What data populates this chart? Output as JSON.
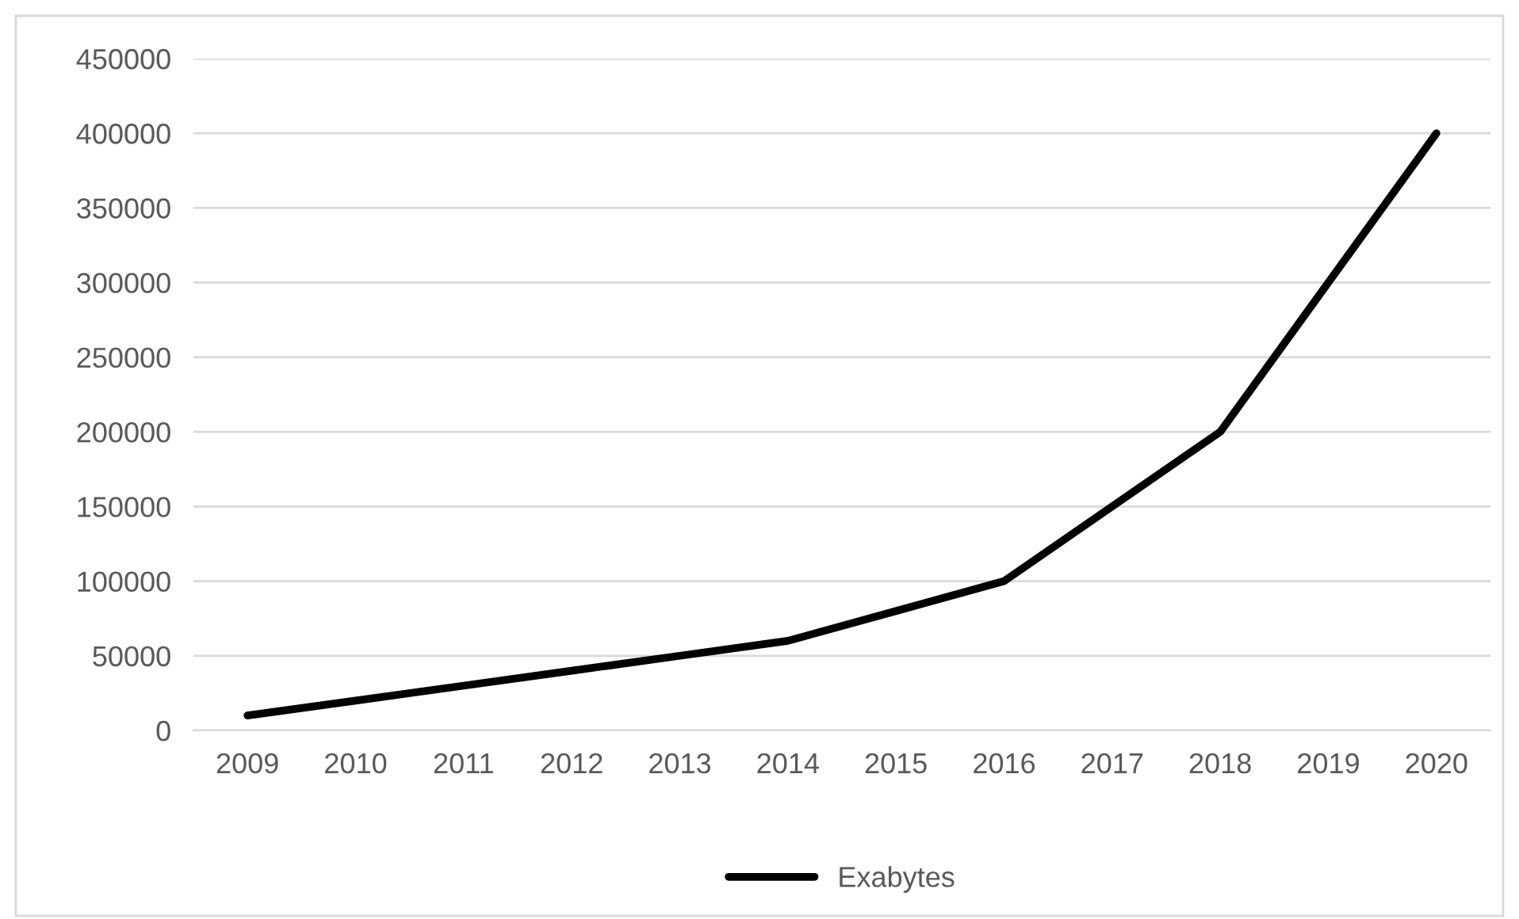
{
  "chart_data": {
    "type": "line",
    "categories": [
      "2009",
      "2010",
      "2011",
      "2012",
      "2013",
      "2014",
      "2015",
      "2016",
      "2017",
      "2018",
      "2019",
      "2020"
    ],
    "series": [
      {
        "name": "Exabytes",
        "color": "#000000",
        "values": [
          10000,
          20000,
          30000,
          40000,
          50000,
          60000,
          80000,
          100000,
          150000,
          200000,
          300000,
          400000
        ]
      }
    ],
    "ylim": [
      0,
      450000
    ],
    "yticks": [
      0,
      50000,
      100000,
      150000,
      200000,
      250000,
      300000,
      350000,
      400000,
      450000
    ],
    "grid": "y",
    "legend": "bottom",
    "marker": "none",
    "line_style": "solid"
  }
}
